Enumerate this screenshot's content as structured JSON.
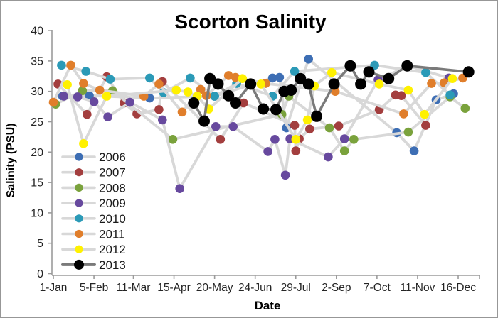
{
  "window": {
    "background": "#ffffff",
    "frame_border_color": "#979797"
  },
  "chart_data": {
    "type": "line",
    "title": "Scorton Salinity",
    "xlabel": "Date",
    "ylabel": "Salinity (PSU)",
    "ylim": [
      0,
      40
    ],
    "y_ticks": [
      0,
      5,
      10,
      15,
      20,
      25,
      30,
      35,
      40
    ],
    "x_tick_labels": [
      "1-Jan",
      "5-Feb",
      "11-Mar",
      "15-Apr",
      "20-May",
      "24-Jun",
      "29-Jul",
      "2-Sep",
      "7-Oct",
      "11-Nov",
      "16-Dec"
    ],
    "x_tick_days": [
      1,
      36,
      70,
      105,
      140,
      175,
      210,
      245,
      280,
      315,
      350
    ],
    "x_range_days": [
      1,
      368
    ],
    "grid": false,
    "legend_position": "inside-lower-left",
    "axis_color": "#9b9b9b",
    "tick_label_color": "#252525",
    "series": [
      {
        "name": "2006",
        "marker_color": "#3D6EB4",
        "line_color": "#D8D8D8",
        "points": [
          [
            9,
            29.2
          ],
          [
            32,
            29.3
          ],
          [
            84,
            28.9
          ],
          [
            140,
            29.2
          ],
          [
            190,
            32.2
          ],
          [
            196,
            32.3
          ],
          [
            202,
            24.0
          ],
          [
            221,
            35.3
          ],
          [
            297,
            23.2
          ],
          [
            312,
            20.2
          ],
          [
            331,
            28.6
          ],
          [
            346,
            29.6
          ]
        ]
      },
      {
        "name": "2007",
        "marker_color": "#A33E3E",
        "line_color": "#D8D8D8",
        "points": [
          [
            5,
            31.2
          ],
          [
            30,
            26.2
          ],
          [
            47,
            32.4
          ],
          [
            62,
            28.1
          ],
          [
            73,
            26.3
          ],
          [
            92,
            27.0
          ],
          [
            95,
            31.6
          ],
          [
            145,
            22.1
          ],
          [
            165,
            28.1
          ],
          [
            209,
            24.4
          ],
          [
            210,
            20.2
          ],
          [
            213,
            22.2
          ],
          [
            222,
            23.8
          ],
          [
            247,
            24.3
          ],
          [
            282,
            27.0
          ],
          [
            296,
            29.4
          ],
          [
            301,
            29.3
          ],
          [
            322,
            24.4
          ]
        ]
      },
      {
        "name": "2008",
        "marker_color": "#7AA23C",
        "line_color": "#D8D8D8",
        "points": [
          [
            3,
            27.9
          ],
          [
            26,
            30.1
          ],
          [
            52,
            30.1
          ],
          [
            104,
            22.1
          ],
          [
            198,
            26.2
          ],
          [
            204,
            29.2
          ],
          [
            239,
            24.0
          ],
          [
            252,
            20.2
          ],
          [
            260,
            22.1
          ],
          [
            307,
            23.3
          ],
          [
            343,
            29.1
          ],
          [
            356,
            27.2
          ]
        ]
      },
      {
        "name": "2009",
        "marker_color": "#67499E",
        "line_color": "#D8D8D8",
        "points": [
          [
            10,
            29.2
          ],
          [
            22,
            29.1
          ],
          [
            36,
            28.3
          ],
          [
            48,
            25.8
          ],
          [
            67,
            28.2
          ],
          [
            95,
            25.3
          ],
          [
            110,
            14.0
          ],
          [
            141,
            24.2
          ],
          [
            156,
            24.2
          ],
          [
            186,
            20.1
          ],
          [
            192,
            22.1
          ],
          [
            201,
            16.2
          ],
          [
            205,
            22.2
          ],
          [
            238,
            19.2
          ],
          [
            252,
            22.2
          ],
          [
            281,
            31.9
          ],
          [
            307,
            34.2
          ],
          [
            342,
            32.2
          ]
        ]
      },
      {
        "name": "2010",
        "marker_color": "#2B9AB7",
        "line_color": "#D8D8D8",
        "points": [
          [
            8,
            34.3
          ],
          [
            29,
            33.3
          ],
          [
            50,
            32.0
          ],
          [
            84,
            32.2
          ],
          [
            96,
            29.8
          ],
          [
            119,
            32.2
          ],
          [
            140,
            29.2
          ],
          [
            159,
            31.3
          ],
          [
            190,
            29.2
          ],
          [
            209,
            33.3
          ],
          [
            278,
            34.3
          ],
          [
            322,
            33.1
          ],
          [
            343,
            29.4
          ]
        ]
      },
      {
        "name": "2011",
        "marker_color": "#E07E2B",
        "line_color": "#D8D8D8",
        "points": [
          [
            1,
            28.2
          ],
          [
            16,
            34.3
          ],
          [
            27,
            31.3
          ],
          [
            41,
            30.2
          ],
          [
            79,
            29.2
          ],
          [
            92,
            31.2
          ],
          [
            112,
            26.6
          ],
          [
            128,
            30.3
          ],
          [
            133,
            29.3
          ],
          [
            152,
            32.6
          ],
          [
            158,
            32.3
          ],
          [
            184,
            31.3
          ],
          [
            244,
            30.0
          ],
          [
            303,
            26.3
          ],
          [
            327,
            31.3
          ],
          [
            338,
            31.4
          ],
          [
            354,
            32.2
          ]
        ]
      },
      {
        "name": "2012",
        "marker_color": "#FFF100",
        "line_color": "#D8D8D8",
        "points": [
          [
            13,
            31.1
          ],
          [
            27,
            21.4
          ],
          [
            47,
            29.2
          ],
          [
            107,
            30.2
          ],
          [
            117,
            29.9
          ],
          [
            125,
            29.2
          ],
          [
            135,
            27.1
          ],
          [
            164,
            32.1
          ],
          [
            180,
            31.2
          ],
          [
            210,
            22.1
          ],
          [
            220,
            25.3
          ],
          [
            226,
            30.9
          ],
          [
            241,
            33.1
          ],
          [
            282,
            31.2
          ],
          [
            307,
            30.2
          ],
          [
            321,
            26.2
          ],
          [
            345,
            32.1
          ]
        ]
      },
      {
        "name": "2013",
        "marker_color": "#000000",
        "line_color": "#7A7A7A",
        "points": [
          [
            122,
            28.1
          ],
          [
            131,
            25.1
          ],
          [
            136,
            32.1
          ],
          [
            143,
            31.2
          ],
          [
            152,
            29.3
          ],
          [
            158,
            28.1
          ],
          [
            171,
            31.2
          ],
          [
            182,
            27.1
          ],
          [
            193,
            27.0
          ],
          [
            200,
            30.0
          ],
          [
            206,
            30.2
          ],
          [
            214,
            32.1
          ],
          [
            221,
            31.2
          ],
          [
            228,
            25.9
          ],
          [
            243,
            31.2
          ],
          [
            257,
            34.2
          ],
          [
            266,
            31.2
          ],
          [
            273,
            33.2
          ],
          [
            290,
            32.1
          ],
          [
            306,
            34.2
          ],
          [
            359,
            33.2
          ]
        ]
      }
    ]
  }
}
